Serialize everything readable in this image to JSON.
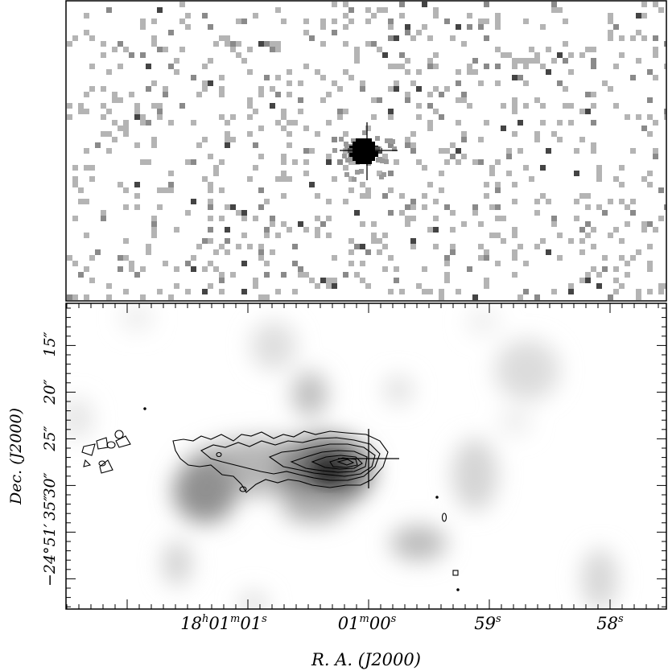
{
  "figure": {
    "top_panel": {
      "description_kind": "x-ray point source image",
      "source_marker": "cross"
    },
    "bottom_panel": {
      "y_axis": {
        "title": "Dec. (J2000)",
        "ticks": [
          {
            "lead": "−24°51′",
            "sec": "35″"
          },
          {
            "lead": "",
            "sec": "30″"
          },
          {
            "lead": "",
            "sec": "25″"
          },
          {
            "lead": "",
            "sec": "20″"
          },
          {
            "lead": "",
            "sec": "15″"
          }
        ]
      },
      "x_axis": {
        "title": "R. A. (J2000)",
        "ticks": [
          {
            "h": "18",
            "m": "01",
            "s": "01"
          },
          {
            "m": "01",
            "s": "00"
          },
          {
            "s": "59"
          },
          {
            "s": "58"
          }
        ]
      }
    }
  }
}
